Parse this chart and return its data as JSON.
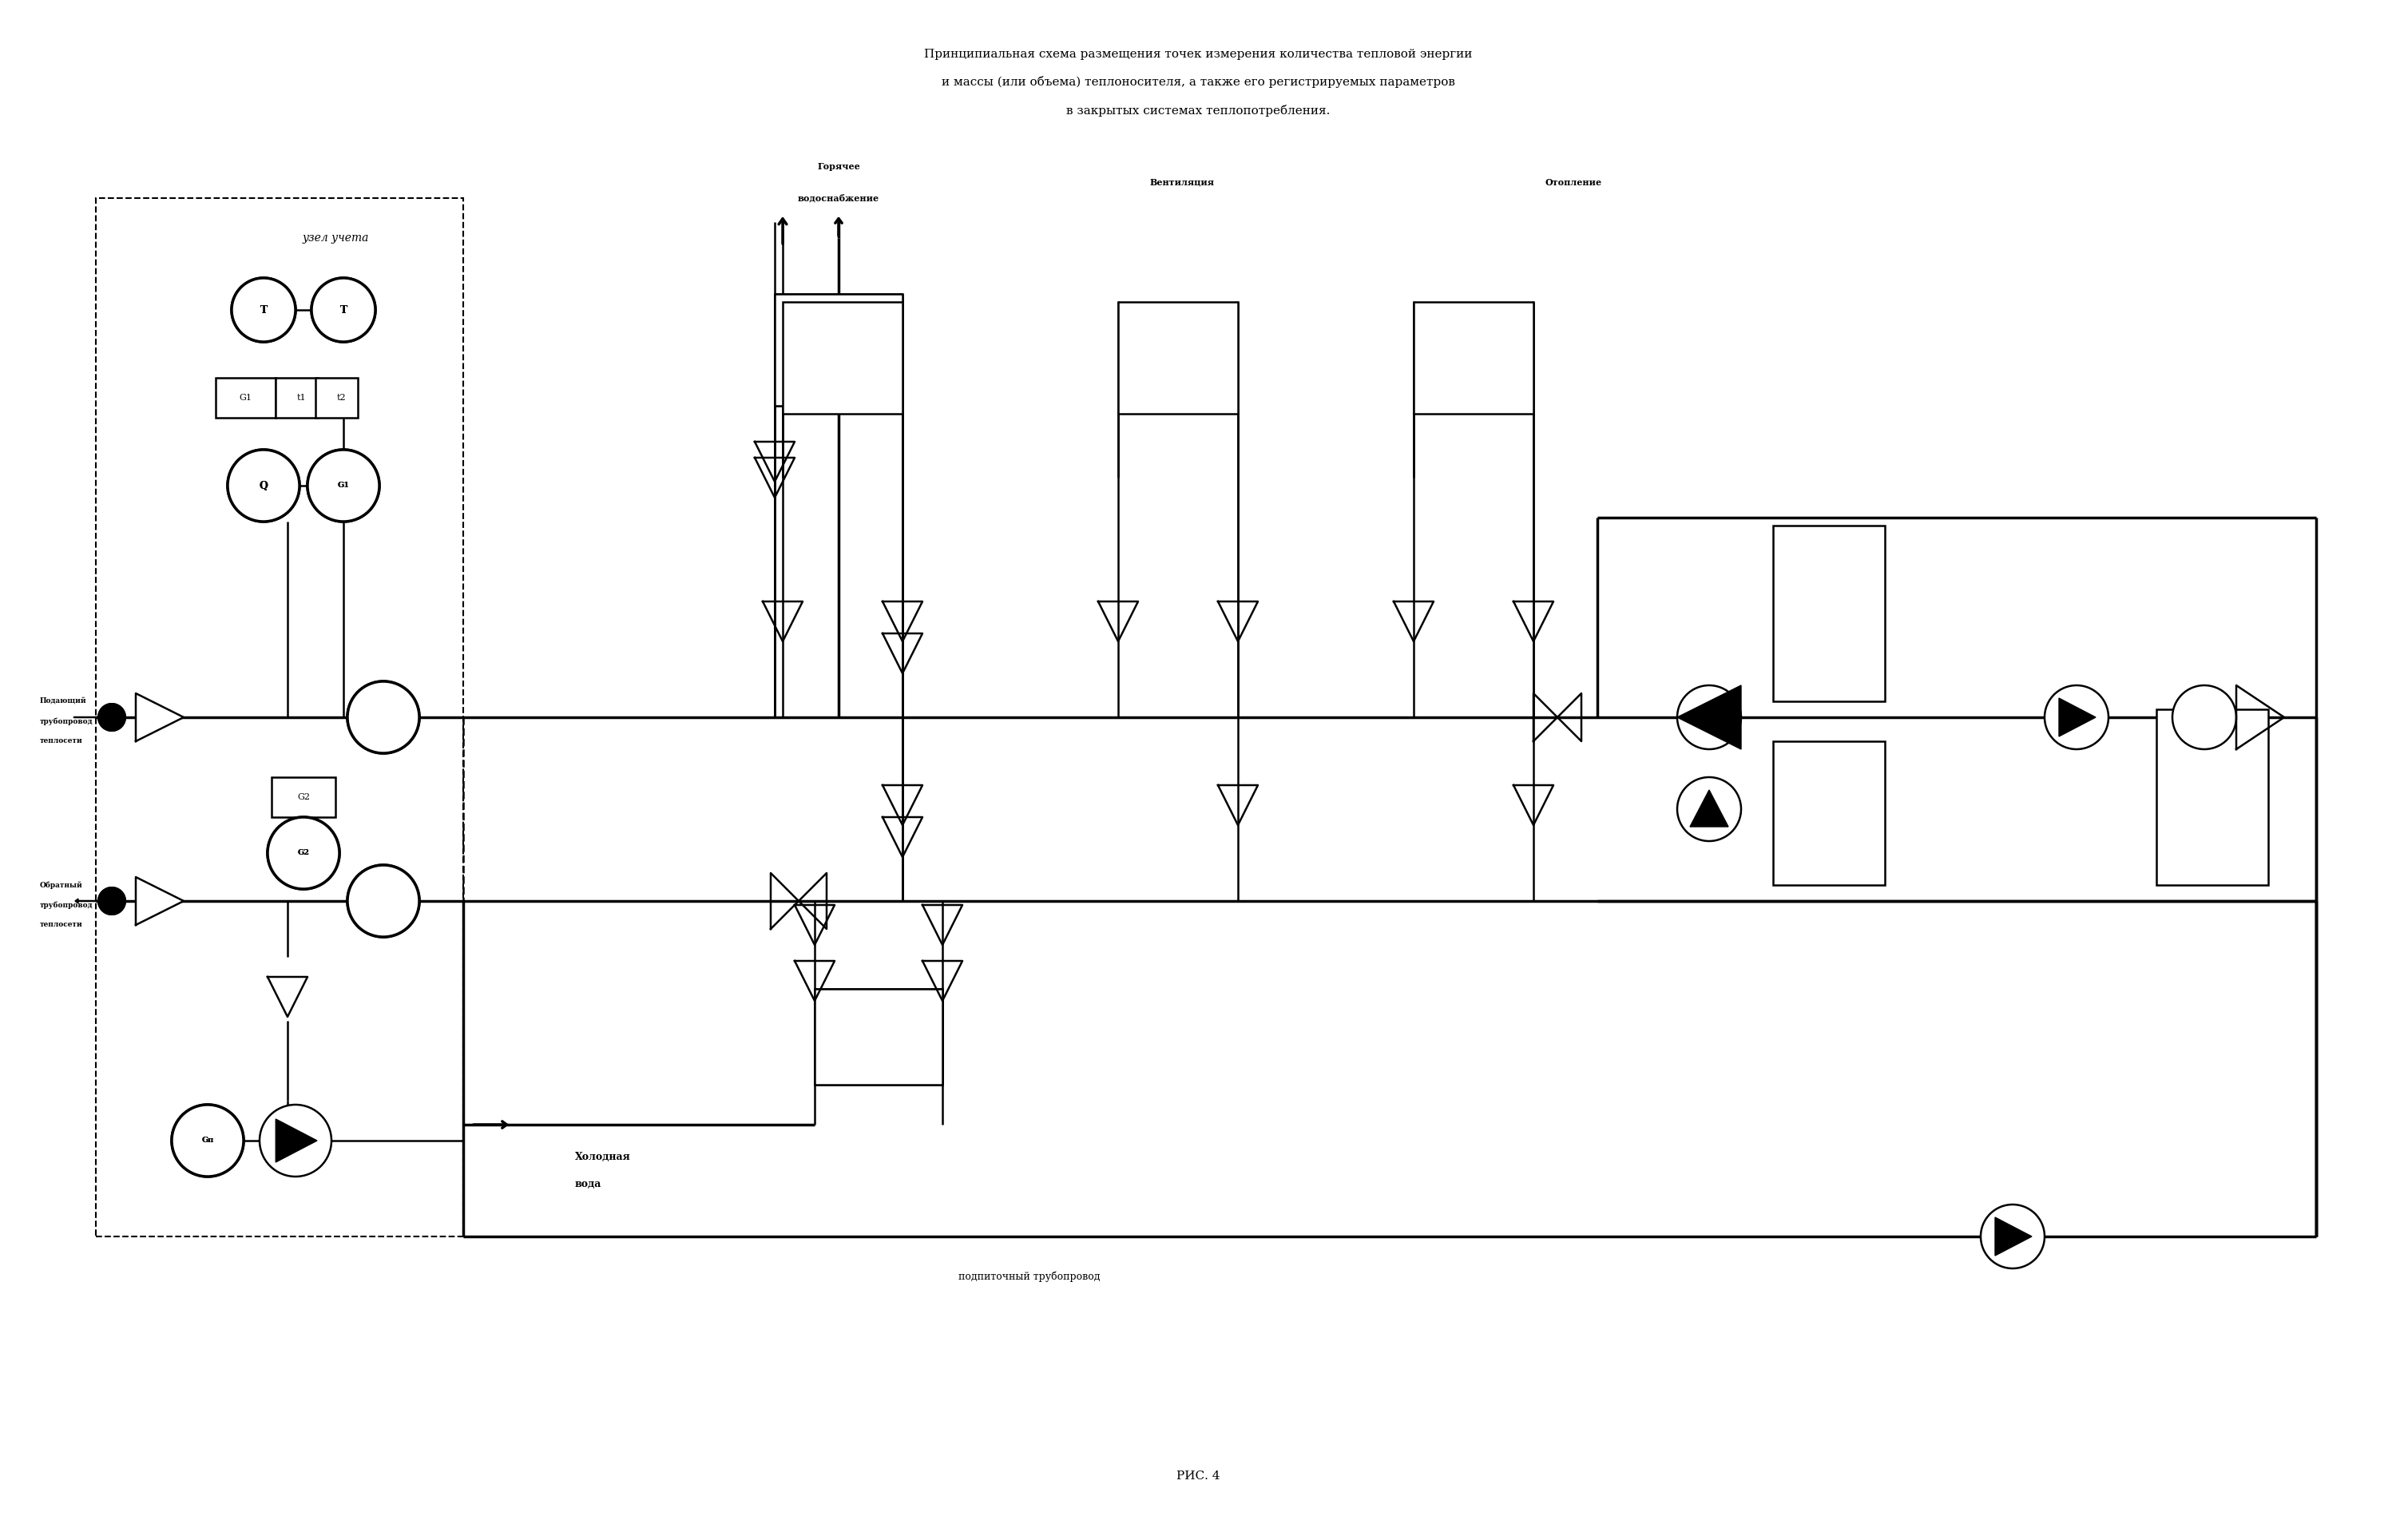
{
  "title_line1": "Принципиальная схема размещения точек измерения количества тепловой энергии",
  "title_line2": "и массы (или объема) теплоносителя, а также его регистрируемых параметров",
  "title_line3": "в закрытых системах теплопотребления.",
  "caption": "РИС. 4",
  "bg_color": "#ffffff",
  "line_color": "#000000"
}
